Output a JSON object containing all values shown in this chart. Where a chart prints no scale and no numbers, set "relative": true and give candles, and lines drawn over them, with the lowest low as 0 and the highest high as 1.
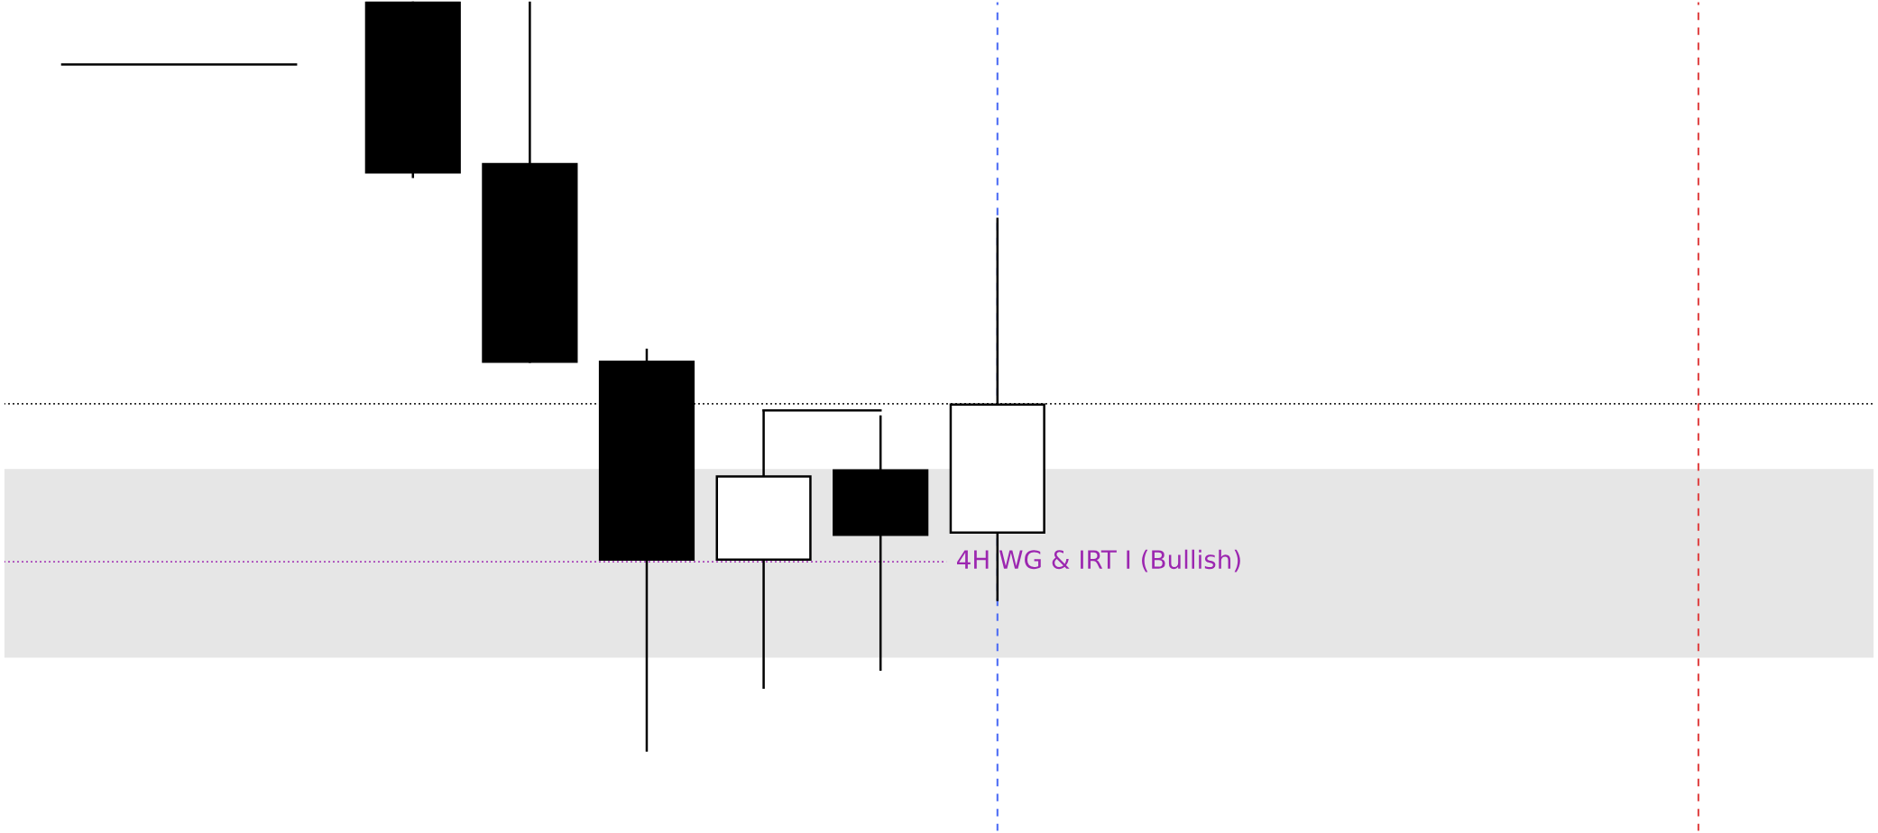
{
  "chart_data": {
    "type": "candlestick",
    "relative": true,
    "categories": [
      null,
      null,
      null,
      null,
      null,
      null,
      null,
      null,
      null,
      null,
      null,
      null,
      null,
      null,
      null,
      null
    ],
    "ohlc": [
      null,
      null,
      null,
      [
        1,
        1,
        0.766,
        0.772
      ],
      [
        0.783,
        1,
        0.519,
        0.519
      ],
      [
        0.519,
        0.535,
        0,
        0.255
      ],
      [
        0.255,
        0.454,
        0.084,
        0.366
      ],
      [
        0.374,
        0.446,
        0.108,
        0.288
      ],
      [
        0.291,
        0.71,
        0.201,
        0.462
      ],
      null,
      null,
      null,
      null,
      null,
      null,
      null
    ],
    "series": [
      {
        "type": "line",
        "color": "#000000",
        "values": [
          0.916,
          0.916,
          0.916,
          null,
          null,
          null,
          null,
          null,
          null,
          null,
          null,
          null,
          null,
          null,
          null,
          null
        ]
      },
      {
        "type": "line",
        "color": "#000000",
        "values": [
          null,
          null,
          null,
          null,
          null,
          null,
          0.454,
          0.454,
          null,
          null,
          null,
          null,
          null,
          null,
          null,
          null
        ]
      }
    ],
    "ref_lines": [
      {
        "axis": "y",
        "value": 0.463,
        "color": "#000000",
        "line_style": "dotted"
      },
      {
        "axis": "y",
        "value": 0.252,
        "color": "#9c27b0",
        "line_style": "dotted",
        "label": "4H WG & IRT I (Bullish)"
      }
    ],
    "bands": [
      {
        "axis": "y",
        "from": 0.124,
        "to": 0.376,
        "color": "#e6e6e6"
      }
    ],
    "line_style": "solid"
  }
}
